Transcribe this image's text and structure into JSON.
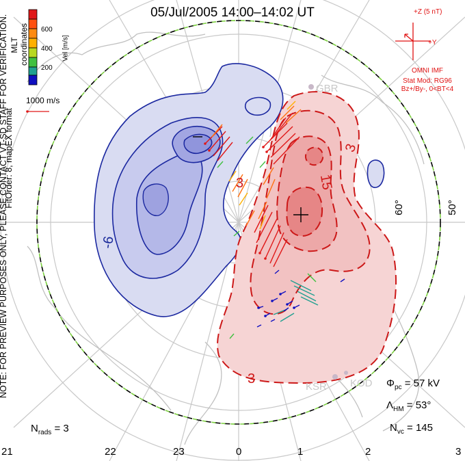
{
  "title": "05/Jul/2005 14:00–14:02 UT",
  "coordinates": "MLT coordinates",
  "colorbar": {
    "label": "Vel [m/s]",
    "ticks": [
      "600",
      "400",
      "200"
    ],
    "colors": [
      "#e01818",
      "#ff7010",
      "#ffb000",
      "#d8d800",
      "#40c040",
      "#20a090",
      "#2050e0",
      "#1010c0"
    ]
  },
  "velocity_scale": {
    "label": "1000 m/s",
    "color": "#e01818"
  },
  "watermark": "NOTE: FOR PREVIEW PURPOSES ONLY, PLEASE CONTACT VT-SD STAFF FOR VERIFICATION.",
  "fit_order": "FitOrder: 8, mapEX format",
  "imf": {
    "z_label": "+Z (5 nT)",
    "y_label": "+Y",
    "source": "OMNI IMF",
    "stat_model": "Stat Mod: RG96",
    "bin": "Bz+/By-, 0<BT<4",
    "color": "#e01010"
  },
  "mlt_labels": [
    "21",
    "22",
    "23",
    "0",
    "1",
    "2",
    "3"
  ],
  "lat_labels": [
    "60°",
    "50°"
  ],
  "contour_labels": {
    "negative": [
      "-6"
    ],
    "positive": [
      "3",
      "3",
      "15",
      "3"
    ]
  },
  "radar_labels": [
    "GBR",
    "KSR",
    "KOD"
  ],
  "stats": {
    "phi_pc_label": "Φ",
    "phi_pc_sub": "pc",
    "phi_pc_value": "= 57 kV",
    "lambda_label": "Λ",
    "lambda_sub": "HM",
    "lambda_value": "= 53°",
    "nvc_label": "N",
    "nvc_sub": "vc",
    "nvc_value": "= 145",
    "nrads_label": "N",
    "nrads_sub": "rads",
    "nrads_value": "= 3"
  },
  "colors": {
    "negative_fill": "#d9dcf2",
    "negative_line": "#1b28a0",
    "positive_fill": "#f6d4d4",
    "positive_line": "#cc1818",
    "grid": "#c8c8c8",
    "boundary_green": "#7cd040"
  }
}
